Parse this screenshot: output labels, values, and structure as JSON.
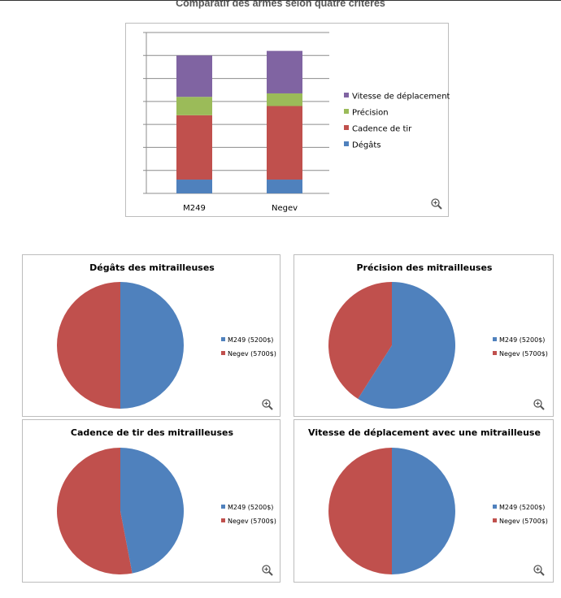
{
  "page": {
    "title": "Comparatif des armes selon quatre critères"
  },
  "colors": {
    "blue": "#4f81bd",
    "red": "#c0504d",
    "green": "#9bbb59",
    "purple": "#8064a2",
    "grid": "#8c8c8c",
    "border": "#bdbdbd"
  },
  "chart_data": [
    {
      "type": "bar",
      "stacked": true,
      "title": "",
      "categories": [
        "M249",
        "Negev"
      ],
      "series": [
        {
          "name": "Dégâts",
          "color": "#4f81bd",
          "values": [
            0.6,
            0.6
          ]
        },
        {
          "name": "Cadence de tir",
          "color": "#c0504d",
          "values": [
            2.8,
            3.2
          ]
        },
        {
          "name": "Précision",
          "color": "#9bbb59",
          "values": [
            0.8,
            0.55
          ]
        },
        {
          "name": "Vitesse de déplacement",
          "color": "#8064a2",
          "values": [
            1.8,
            1.85
          ]
        }
      ],
      "ylim": [
        0,
        7
      ],
      "grid": true,
      "legend": "right",
      "legend_order": [
        "Vitesse de déplacement",
        "Précision",
        "Cadence de tir",
        "Dégâts"
      ]
    },
    {
      "type": "pie",
      "title": "Dégâts des mitrailleuses",
      "labels": [
        "M249 (5200$)",
        "Negev (5700$)"
      ],
      "values": [
        50,
        50
      ],
      "colors": [
        "#4f81bd",
        "#c0504d"
      ],
      "legend": "right"
    },
    {
      "type": "pie",
      "title": "Précision des mitrailleuses",
      "labels": [
        "M249 (5200$)",
        "Negev (5700$)"
      ],
      "values": [
        59,
        41
      ],
      "colors": [
        "#4f81bd",
        "#c0504d"
      ],
      "legend": "right"
    },
    {
      "type": "pie",
      "title": "Cadence de tir des mitrailleuses",
      "labels": [
        "M249 (5200$)",
        "Negev (5700$)"
      ],
      "values": [
        47,
        53
      ],
      "colors": [
        "#4f81bd",
        "#c0504d"
      ],
      "legend": "right"
    },
    {
      "type": "pie",
      "title": "Vitesse de déplacement avec une mitrailleuse",
      "labels": [
        "M249 (5200$)",
        "Negev (5700$)"
      ],
      "values": [
        50,
        50
      ],
      "colors": [
        "#4f81bd",
        "#c0504d"
      ],
      "legend": "right"
    }
  ],
  "icons": {
    "zoom": "zoom-in-icon"
  }
}
